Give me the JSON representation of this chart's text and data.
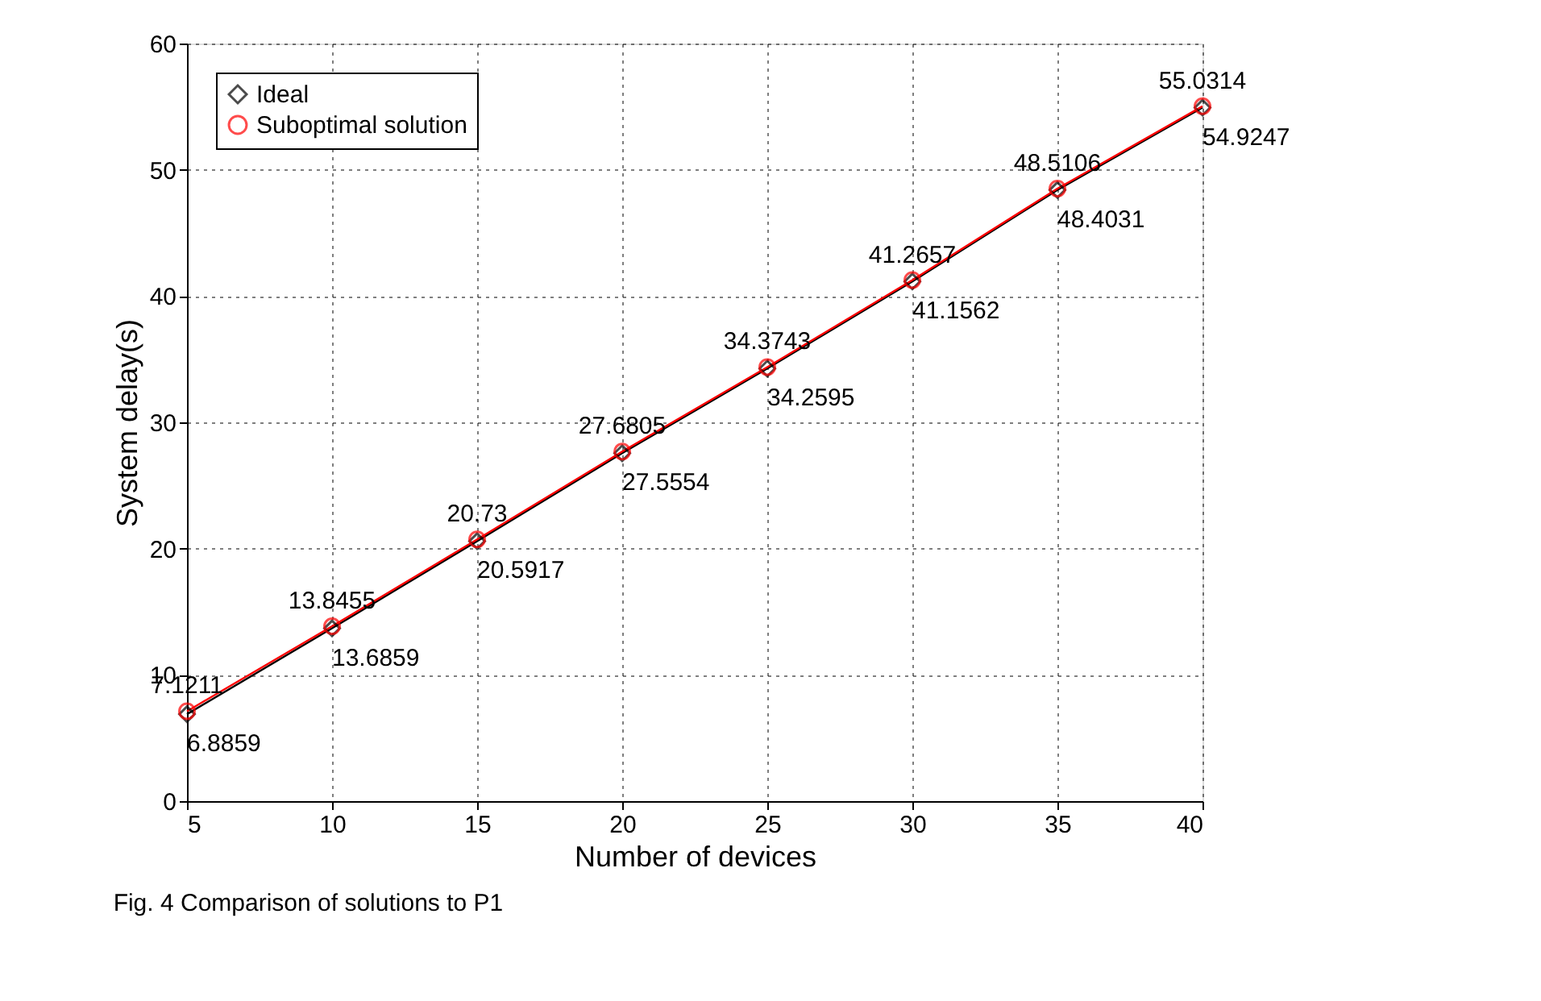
{
  "chart_data": {
    "type": "line",
    "xlabel": "Number of devices",
    "ylabel": "System delay(s)",
    "x": [
      5,
      10,
      15,
      20,
      25,
      30,
      35,
      40
    ],
    "series": [
      {
        "name": "Ideal",
        "color": "#000000",
        "marker": "diamond",
        "values": [
          6.8859,
          13.6859,
          20.5917,
          27.5554,
          34.2595,
          41.1562,
          48.4031,
          54.9247
        ]
      },
      {
        "name": "Suboptimal solution",
        "color": "#ff0000",
        "marker": "circle",
        "values": [
          7.1211,
          13.8455,
          20.73,
          27.6805,
          34.3743,
          41.2657,
          48.5106,
          55.0314
        ]
      }
    ],
    "xlim": [
      5,
      40
    ],
    "xticks": [
      5,
      10,
      15,
      20,
      25,
      30,
      35,
      40
    ],
    "ylim": [
      0,
      60
    ],
    "yticks": [
      0,
      10,
      20,
      30,
      40,
      50,
      60
    ],
    "grid": true,
    "legend": "top left",
    "data_labels": true,
    "line_style": "solid",
    "annotations": [
      "Fig. 4  Comparison of solutions to P1"
    ]
  }
}
